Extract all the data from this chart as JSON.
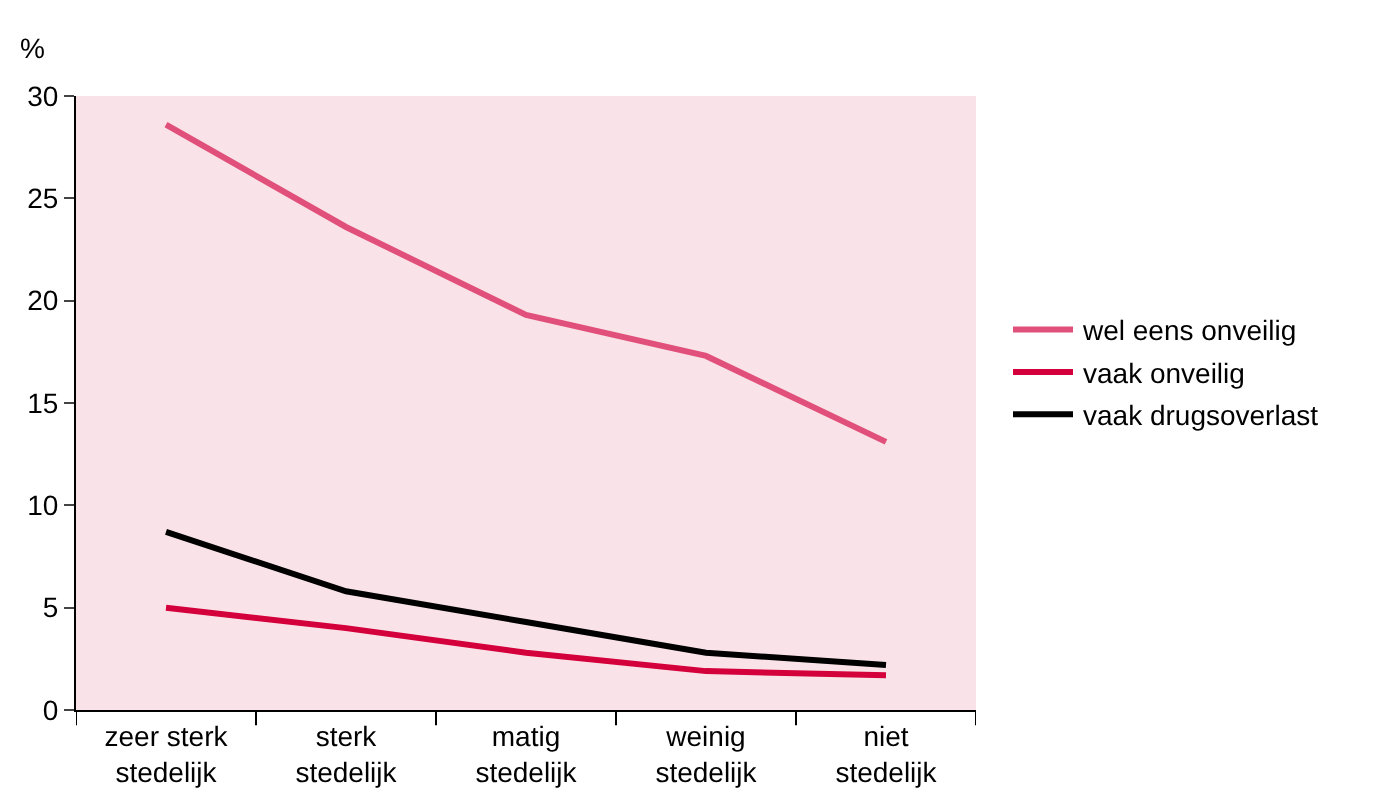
{
  "chart_data": {
    "type": "line",
    "ylabel": "%",
    "categories": [
      "zeer sterk\nstedelijk",
      "sterk\nstedelijk",
      "matig\nstedelijk",
      "weinig\nstedelijk",
      "niet\nstedelijk"
    ],
    "series": [
      {
        "name": "wel eens onveilig",
        "color": "#e0507a",
        "values": [
          28.6,
          23.6,
          19.3,
          17.3,
          13.1
        ]
      },
      {
        "name": "vaak onveilig",
        "color": "#d4003c",
        "values": [
          5.0,
          4.0,
          2.8,
          1.9,
          1.7
        ]
      },
      {
        "name": "vaak drugsoverlast",
        "color": "#000000",
        "values": [
          8.7,
          5.8,
          4.3,
          2.8,
          2.2
        ]
      }
    ],
    "ylim": [
      0,
      30
    ],
    "yticks": [
      0,
      5,
      10,
      15,
      20,
      25,
      30
    ],
    "grid": false,
    "legend": "right",
    "marker": "none",
    "line_style": "solid"
  }
}
